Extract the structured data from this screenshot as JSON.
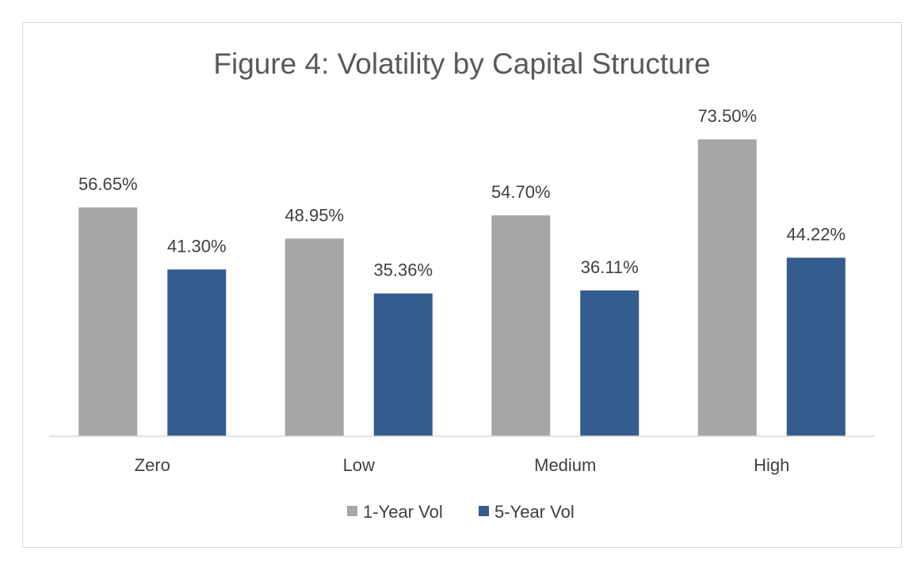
{
  "chart_data": {
    "type": "bar",
    "title": "Figure 4: Volatility by Capital Structure",
    "xlabel": "",
    "ylabel": "",
    "categories": [
      "Zero",
      "Low",
      "Medium",
      "High"
    ],
    "series": [
      {
        "name": "1-Year Vol",
        "color": "#a6a6a6",
        "values": [
          56.65,
          48.95,
          54.7,
          73.5
        ],
        "labels": [
          "56.65%",
          "48.95%",
          "54.70%",
          "73.50%"
        ]
      },
      {
        "name": "5-Year Vol",
        "color": "#355c8e",
        "values": [
          41.3,
          35.36,
          36.11,
          44.22
        ],
        "labels": [
          "41.30%",
          "35.36%",
          "36.11%",
          "44.22%"
        ]
      }
    ],
    "ylim": [
      0,
      80
    ],
    "grid": false,
    "legend_position": "bottom"
  }
}
